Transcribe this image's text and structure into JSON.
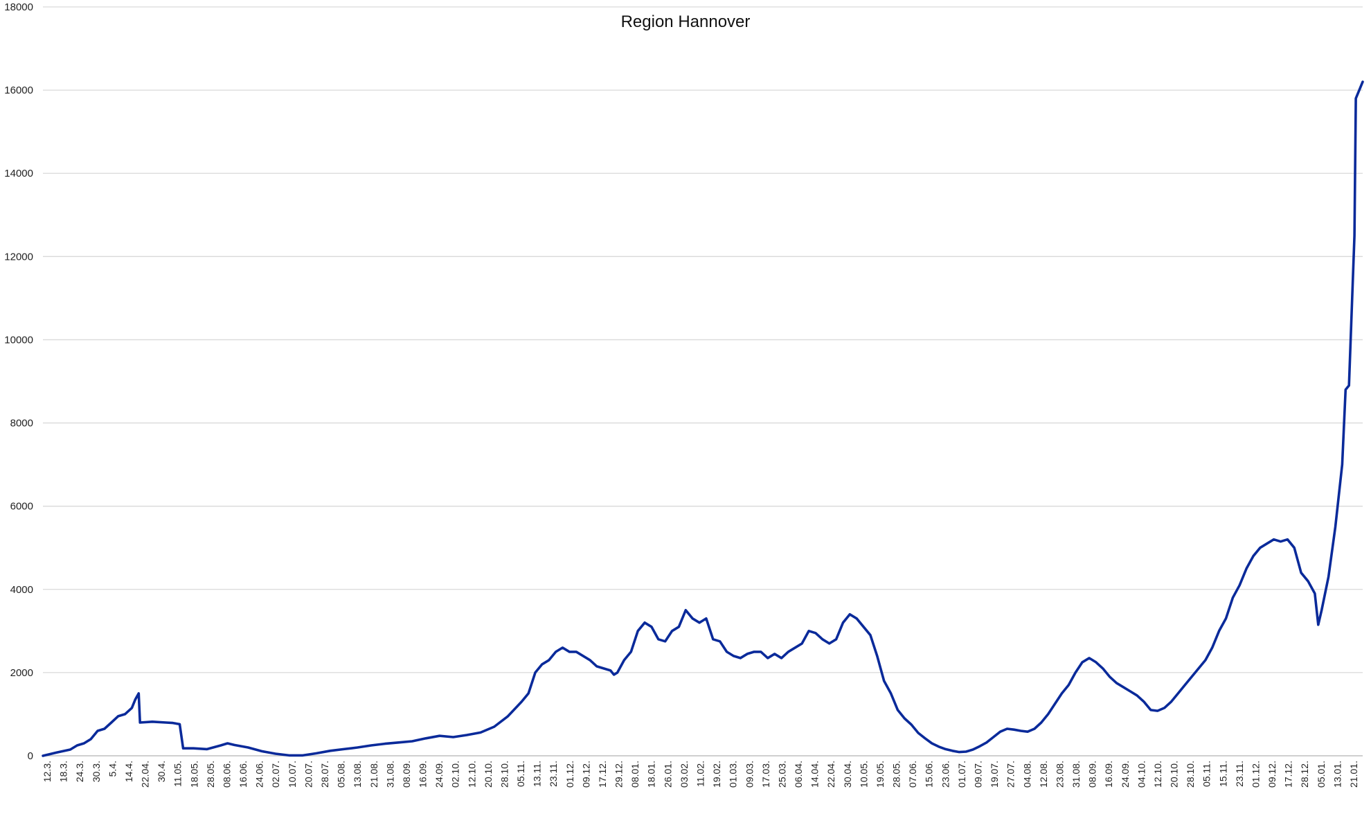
{
  "chart_data": {
    "type": "line",
    "title": "Region Hannover",
    "xlabel": "",
    "ylabel": "",
    "ylim": [
      0,
      18000
    ],
    "yticks": [
      "0",
      "2000",
      "4000",
      "6000",
      "8000",
      "10000",
      "12000",
      "14000",
      "16000",
      "18000"
    ],
    "grid": true,
    "legend": "none",
    "line_color": "#0a2a9a",
    "x_tick_labels": [
      "12.3.",
      "18.3.",
      "24.3.",
      "30.3.",
      "5.4.",
      "14.4.",
      "22.04.",
      "30.4.",
      "11.05.",
      "18.05.",
      "28.05.",
      "08.06.",
      "16.06.",
      "24.06.",
      "02.07.",
      "10.07.",
      "20.07.",
      "28.07.",
      "05.08.",
      "13.08.",
      "21.08.",
      "31.08.",
      "08.09.",
      "16.09.",
      "24.09.",
      "02.10.",
      "12.10.",
      "20.10.",
      "28.10.",
      "05.11.",
      "13.11.",
      "23.11.",
      "01.12.",
      "09.12.",
      "17.12.",
      "29.12.",
      "08.01.",
      "18.01.",
      "26.01.",
      "03.02.",
      "11.02.",
      "19.02.",
      "01.03.",
      "09.03.",
      "17.03.",
      "25.03.",
      "06.04.",
      "14.04.",
      "22.04.",
      "30.04.",
      "10.05.",
      "19.05.",
      "28.05.",
      "07.06.",
      "15.06.",
      "23.06.",
      "01.07.",
      "09.07.",
      "19.07.",
      "27.07.",
      "04.08.",
      "12.08.",
      "23.08.",
      "31.08.",
      "08.09.",
      "16.09.",
      "24.09.",
      "04.10.",
      "12.10.",
      "20.10.",
      "28.10.",
      "05.11.",
      "15.11.",
      "23.11.",
      "01.12.",
      "09.12.",
      "17.12.",
      "28.12.",
      "05.01.",
      "13.01.",
      "21.01."
    ],
    "series": [
      {
        "values": [
          [
            0,
            0
          ],
          [
            2,
            80
          ],
          [
            4,
            150
          ],
          [
            5,
            250
          ],
          [
            6,
            300
          ],
          [
            7,
            400
          ],
          [
            8,
            600
          ],
          [
            9,
            650
          ],
          [
            10,
            800
          ],
          [
            11,
            950
          ],
          [
            12,
            1000
          ],
          [
            13,
            1150
          ],
          [
            13.5,
            1350
          ],
          [
            14,
            1500
          ],
          [
            14.2,
            800
          ],
          [
            16,
            820
          ],
          [
            18,
            800
          ],
          [
            19,
            790
          ],
          [
            20,
            760
          ],
          [
            20.5,
            180
          ],
          [
            22,
            180
          ],
          [
            24,
            160
          ],
          [
            26,
            250
          ],
          [
            27,
            300
          ],
          [
            28,
            260
          ],
          [
            30,
            200
          ],
          [
            32,
            110
          ],
          [
            34,
            50
          ],
          [
            36,
            10
          ],
          [
            38,
            10
          ],
          [
            40,
            60
          ],
          [
            42,
            120
          ],
          [
            44,
            160
          ],
          [
            46,
            200
          ],
          [
            48,
            250
          ],
          [
            50,
            290
          ],
          [
            52,
            320
          ],
          [
            54,
            350
          ],
          [
            56,
            420
          ],
          [
            58,
            480
          ],
          [
            60,
            450
          ],
          [
            62,
            500
          ],
          [
            64,
            560
          ],
          [
            66,
            700
          ],
          [
            68,
            950
          ],
          [
            70,
            1300
          ],
          [
            71,
            1500
          ],
          [
            72,
            2000
          ],
          [
            73,
            2200
          ],
          [
            74,
            2300
          ],
          [
            75,
            2500
          ],
          [
            76,
            2600
          ],
          [
            77,
            2500
          ],
          [
            78,
            2500
          ],
          [
            80,
            2300
          ],
          [
            81,
            2150
          ],
          [
            82,
            2100
          ],
          [
            83,
            2050
          ],
          [
            83.5,
            1950
          ],
          [
            84,
            2000
          ],
          [
            85,
            2300
          ],
          [
            86,
            2500
          ],
          [
            87,
            3000
          ],
          [
            88,
            3200
          ],
          [
            89,
            3100
          ],
          [
            90,
            2800
          ],
          [
            91,
            2750
          ],
          [
            92,
            3000
          ],
          [
            93,
            3100
          ],
          [
            94,
            3500
          ],
          [
            95,
            3300
          ],
          [
            96,
            3200
          ],
          [
            97,
            3300
          ],
          [
            98,
            2800
          ],
          [
            99,
            2750
          ],
          [
            100,
            2500
          ],
          [
            101,
            2400
          ],
          [
            102,
            2350
          ],
          [
            103,
            2450
          ],
          [
            104,
            2500
          ],
          [
            105,
            2500
          ],
          [
            106,
            2350
          ],
          [
            107,
            2450
          ],
          [
            108,
            2350
          ],
          [
            109,
            2500
          ],
          [
            110,
            2600
          ],
          [
            111,
            2700
          ],
          [
            112,
            3000
          ],
          [
            113,
            2950
          ],
          [
            114,
            2800
          ],
          [
            115,
            2700
          ],
          [
            116,
            2800
          ],
          [
            117,
            3200
          ],
          [
            118,
            3400
          ],
          [
            119,
            3300
          ],
          [
            120,
            3100
          ],
          [
            121,
            2900
          ],
          [
            122,
            2400
          ],
          [
            123,
            1800
          ],
          [
            124,
            1500
          ],
          [
            125,
            1100
          ],
          [
            126,
            900
          ],
          [
            127,
            750
          ],
          [
            128,
            550
          ],
          [
            129,
            420
          ],
          [
            130,
            300
          ],
          [
            131,
            220
          ],
          [
            132,
            160
          ],
          [
            133,
            120
          ],
          [
            134,
            90
          ],
          [
            135,
            100
          ],
          [
            136,
            150
          ],
          [
            137,
            230
          ],
          [
            138,
            320
          ],
          [
            139,
            450
          ],
          [
            140,
            580
          ],
          [
            141,
            650
          ],
          [
            142,
            630
          ],
          [
            143,
            600
          ],
          [
            144,
            580
          ],
          [
            145,
            650
          ],
          [
            146,
            800
          ],
          [
            147,
            1000
          ],
          [
            148,
            1250
          ],
          [
            149,
            1500
          ],
          [
            150,
            1700
          ],
          [
            151,
            2000
          ],
          [
            152,
            2250
          ],
          [
            153,
            2350
          ],
          [
            154,
            2250
          ],
          [
            155,
            2100
          ],
          [
            156,
            1900
          ],
          [
            157,
            1750
          ],
          [
            158,
            1650
          ],
          [
            159,
            1550
          ],
          [
            160,
            1450
          ],
          [
            161,
            1300
          ],
          [
            162,
            1100
          ],
          [
            163,
            1080
          ],
          [
            164,
            1150
          ],
          [
            165,
            1300
          ],
          [
            166,
            1500
          ],
          [
            167,
            1700
          ],
          [
            168,
            1900
          ],
          [
            169,
            2100
          ],
          [
            170,
            2300
          ],
          [
            171,
            2600
          ],
          [
            172,
            3000
          ],
          [
            173,
            3300
          ],
          [
            174,
            3800
          ],
          [
            175,
            4100
          ],
          [
            176,
            4500
          ],
          [
            177,
            4800
          ],
          [
            178,
            5000
          ],
          [
            179,
            5100
          ],
          [
            180,
            5200
          ],
          [
            181,
            5150
          ],
          [
            182,
            5200
          ],
          [
            183,
            5000
          ],
          [
            184,
            4400
          ],
          [
            185,
            4200
          ],
          [
            186,
            3900
          ],
          [
            186.5,
            3150
          ],
          [
            187,
            3500
          ],
          [
            188,
            4300
          ],
          [
            189,
            5500
          ],
          [
            190,
            7000
          ],
          [
            190.5,
            8800
          ],
          [
            191,
            8900
          ],
          [
            191.8,
            12500
          ],
          [
            192,
            15800
          ],
          [
            193,
            16200
          ]
        ]
      }
    ]
  }
}
